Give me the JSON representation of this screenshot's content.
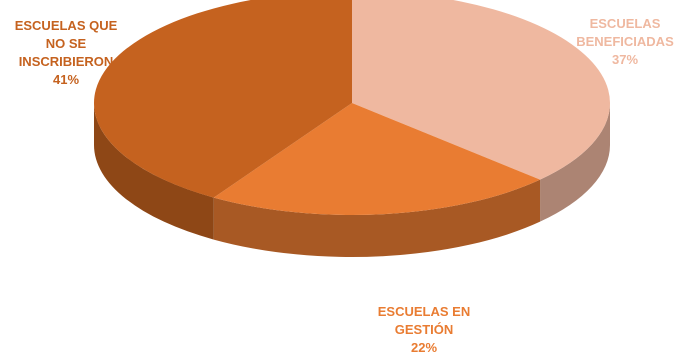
{
  "chart_data": {
    "type": "pie",
    "style": "3d",
    "categories": [
      "ESCUELAS BENEFICIADAS",
      "ESCUELAS EN GESTIÓN",
      "ESCUELAS QUE NO SE INSCRIBIERON"
    ],
    "values": [
      37,
      22,
      41
    ],
    "unit": "%",
    "slices": [
      {
        "label": "ESCUELAS\nBENEFICIADAS",
        "value_label": "37%",
        "value": 37,
        "color": "#efb8a0",
        "label_color": "#efb8a0"
      },
      {
        "label": "ESCUELAS EN\nGESTIÓN",
        "value_label": "22%",
        "value": 22,
        "color": "#e97c32",
        "label_color": "#e97c32"
      },
      {
        "label": "ESCUELAS QUE\nNO SE\nINSCRIBIERON",
        "value_label": "41%",
        "value": 41,
        "color": "#c5621f",
        "label_color": "#c5621f"
      }
    ],
    "title": "",
    "legend": "none"
  }
}
